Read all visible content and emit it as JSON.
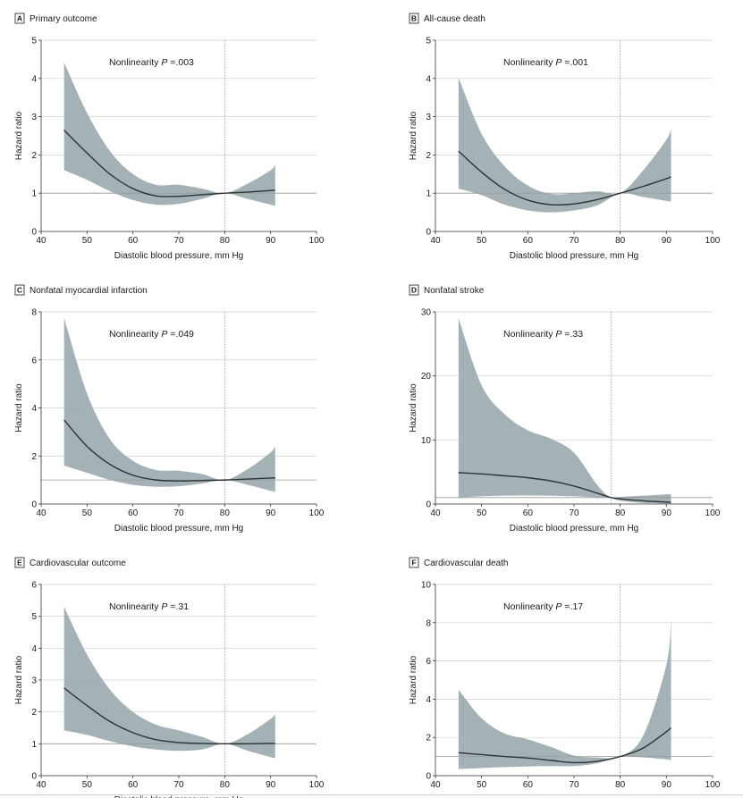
{
  "colors": {
    "band": "#9fadb1",
    "curve": "#2b3336",
    "grid": "#cfcfcf",
    "refline": "#9a9a9a",
    "axis": "#333333"
  },
  "chart_data": [
    {
      "type": "line",
      "letter": "A",
      "title": "Primary outcome",
      "annotation_prefix": "Nonlinearity ",
      "annotation_p": "P",
      "annotation_value": " =.003",
      "xlabel": "Diastolic blood pressure, mm Hg",
      "ylabel": "Hazard ratio",
      "xlim": [
        40,
        100
      ],
      "ylim": [
        0,
        5
      ],
      "xticks": [
        40,
        50,
        60,
        70,
        80,
        90,
        100
      ],
      "yticks": [
        0,
        1,
        2,
        3,
        4,
        5
      ],
      "reference_x": 80,
      "reference_y": 1,
      "x": [
        45,
        50,
        55,
        60,
        65,
        70,
        75,
        80,
        85,
        90,
        91
      ],
      "hr": [
        2.65,
        2.05,
        1.5,
        1.12,
        0.93,
        0.92,
        0.96,
        1.0,
        1.03,
        1.07,
        1.08
      ],
      "lower": [
        1.6,
        1.35,
        1.05,
        0.82,
        0.7,
        0.72,
        0.85,
        1.0,
        0.85,
        0.7,
        0.67
      ],
      "upper": [
        4.42,
        3.1,
        2.1,
        1.5,
        1.22,
        1.22,
        1.12,
        1.0,
        1.25,
        1.6,
        1.75
      ]
    },
    {
      "type": "line",
      "letter": "B",
      "title": "All-cause death",
      "annotation_prefix": "Nonlinearity ",
      "annotation_p": "P",
      "annotation_value": " =.001",
      "xlabel": "Diastolic blood pressure, mm Hg",
      "ylabel": "Hazard ratio",
      "xlim": [
        40,
        100
      ],
      "ylim": [
        0,
        5
      ],
      "xticks": [
        40,
        50,
        60,
        70,
        80,
        90,
        100
      ],
      "yticks": [
        0,
        1,
        2,
        3,
        4,
        5
      ],
      "reference_x": 80,
      "reference_y": 1,
      "x": [
        45,
        50,
        55,
        60,
        65,
        70,
        75,
        80,
        85,
        90,
        91
      ],
      "hr": [
        2.1,
        1.55,
        1.1,
        0.82,
        0.7,
        0.72,
        0.83,
        1.0,
        1.18,
        1.38,
        1.43
      ],
      "lower": [
        1.12,
        0.95,
        0.7,
        0.55,
        0.5,
        0.55,
        0.68,
        1.0,
        0.9,
        0.8,
        0.78
      ],
      "upper": [
        4.02,
        2.55,
        1.7,
        1.2,
        0.98,
        1.0,
        1.05,
        1.0,
        1.6,
        2.4,
        2.68
      ]
    },
    {
      "type": "line",
      "letter": "C",
      "title": "Nonfatal myocardial infarction",
      "annotation_prefix": "Nonlinearity ",
      "annotation_p": "P",
      "annotation_value": " =.049",
      "xlabel": "Diastolic blood pressure, mm Hg",
      "ylabel": "Hazard ratio",
      "xlim": [
        40,
        100
      ],
      "ylim": [
        0,
        8
      ],
      "xticks": [
        40,
        50,
        60,
        70,
        80,
        90,
        100
      ],
      "yticks": [
        0,
        2,
        4,
        6,
        8
      ],
      "reference_x": 80,
      "reference_y": 1,
      "x": [
        45,
        50,
        55,
        60,
        65,
        70,
        75,
        80,
        85,
        90,
        91
      ],
      "hr": [
        3.5,
        2.4,
        1.65,
        1.2,
        1.0,
        0.96,
        0.98,
        1.0,
        1.04,
        1.08,
        1.09
      ],
      "lower": [
        1.6,
        1.3,
        1.0,
        0.8,
        0.72,
        0.74,
        0.85,
        1.0,
        0.8,
        0.55,
        0.5
      ],
      "upper": [
        7.75,
        4.6,
        2.7,
        1.8,
        1.42,
        1.38,
        1.25,
        1.0,
        1.45,
        2.15,
        2.4
      ]
    },
    {
      "type": "line",
      "letter": "D",
      "title": "Nonfatal stroke",
      "annotation_prefix": "Nonlinearity ",
      "annotation_p": "P",
      "annotation_value": " =.33",
      "xlabel": "Diastolic blood pressure, mm Hg",
      "ylabel": "Hazard ratio",
      "xlim": [
        40,
        100
      ],
      "ylim": [
        0,
        30
      ],
      "xticks": [
        40,
        50,
        60,
        70,
        80,
        90,
        100
      ],
      "yticks": [
        0,
        10,
        20,
        30
      ],
      "reference_x": 78,
      "reference_y": 1,
      "x": [
        45,
        50,
        55,
        60,
        65,
        70,
        75,
        78,
        80,
        85,
        90,
        91
      ],
      "hr": [
        4.9,
        4.7,
        4.4,
        4.1,
        3.6,
        2.8,
        1.7,
        1.0,
        0.8,
        0.5,
        0.3,
        0.25
      ],
      "lower": [
        1.0,
        1.2,
        1.3,
        1.35,
        1.3,
        1.2,
        1.05,
        1.0,
        0.5,
        0.15,
        0.05,
        0.05
      ],
      "upper": [
        29.0,
        18.5,
        14.0,
        11.5,
        10.2,
        8.0,
        3.0,
        1.0,
        1.1,
        1.3,
        1.5,
        1.5
      ]
    },
    {
      "type": "line",
      "letter": "E",
      "title": "Cardiovascular outcome",
      "annotation_prefix": "Nonlinearity ",
      "annotation_p": "P",
      "annotation_value": " =.31",
      "xlabel": "Diastolic blood pressure, mm Hg",
      "ylabel": "Hazard ratio",
      "xlim": [
        40,
        100
      ],
      "ylim": [
        0,
        6
      ],
      "xticks": [
        40,
        50,
        60,
        70,
        80,
        90,
        100
      ],
      "yticks": [
        0,
        1,
        2,
        3,
        4,
        5,
        6
      ],
      "reference_x": 80,
      "reference_y": 1,
      "x": [
        45,
        50,
        55,
        60,
        65,
        70,
        75,
        80,
        85,
        90,
        91
      ],
      "hr": [
        2.75,
        2.2,
        1.7,
        1.35,
        1.13,
        1.04,
        1.01,
        1.0,
        1.0,
        1.01,
        1.01
      ],
      "lower": [
        1.42,
        1.28,
        1.08,
        0.92,
        0.82,
        0.78,
        0.82,
        1.0,
        0.78,
        0.58,
        0.55
      ],
      "upper": [
        5.3,
        3.8,
        2.7,
        2.0,
        1.6,
        1.42,
        1.22,
        1.0,
        1.3,
        1.78,
        1.92
      ]
    },
    {
      "type": "line",
      "letter": "F",
      "title": "Cardiovascular death",
      "annotation_prefix": "Nonlinearity ",
      "annotation_p": "P",
      "annotation_value": " =.17",
      "xlabel": "",
      "ylabel": "Hazard ratio",
      "xlim": [
        40,
        100
      ],
      "ylim": [
        0,
        10
      ],
      "xticks": [
        40,
        50,
        60,
        70,
        80,
        90,
        100
      ],
      "yticks": [
        0,
        2,
        4,
        6,
        8,
        10
      ],
      "reference_x": 80,
      "reference_y": 1,
      "x": [
        45,
        50,
        55,
        60,
        65,
        70,
        75,
        80,
        85,
        90,
        91
      ],
      "hr": [
        1.2,
        1.1,
        1.0,
        0.92,
        0.8,
        0.68,
        0.75,
        1.0,
        1.45,
        2.3,
        2.5
      ],
      "lower": [
        0.35,
        0.4,
        0.45,
        0.48,
        0.5,
        0.5,
        0.65,
        1.0,
        0.95,
        0.85,
        0.8
      ],
      "upper": [
        4.5,
        3.0,
        2.2,
        1.9,
        1.5,
        1.05,
        0.95,
        1.0,
        2.1,
        5.8,
        8.2
      ]
    }
  ]
}
